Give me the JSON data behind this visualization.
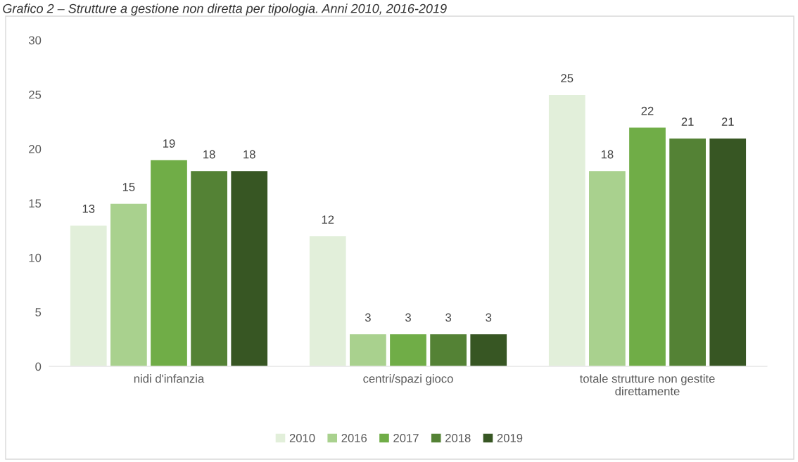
{
  "chart_data": {
    "type": "bar",
    "title": "Grafico 2 – Strutture a gestione non diretta per tipologia. Anni 2010, 2016-2019",
    "categories": [
      "nidi d'infanzia",
      "centri/spazi gioco",
      "totale strutture non gestite\ndirettamente"
    ],
    "series": [
      {
        "name": "2010",
        "color": "#e2efda",
        "values": [
          13,
          12,
          25
        ]
      },
      {
        "name": "2016",
        "color": "#a9d18e",
        "values": [
          15,
          3,
          18
        ]
      },
      {
        "name": "2017",
        "color": "#70ad47",
        "values": [
          19,
          3,
          22
        ]
      },
      {
        "name": "2018",
        "color": "#548235",
        "values": [
          18,
          3,
          21
        ]
      },
      {
        "name": "2019",
        "color": "#375623",
        "values": [
          18,
          3,
          21
        ]
      }
    ],
    "ylim": [
      0,
      30
    ],
    "yticks": [
      0,
      5,
      10,
      15,
      20,
      25,
      30
    ],
    "data_labels": true,
    "grid": false,
    "legend": "bottom"
  }
}
